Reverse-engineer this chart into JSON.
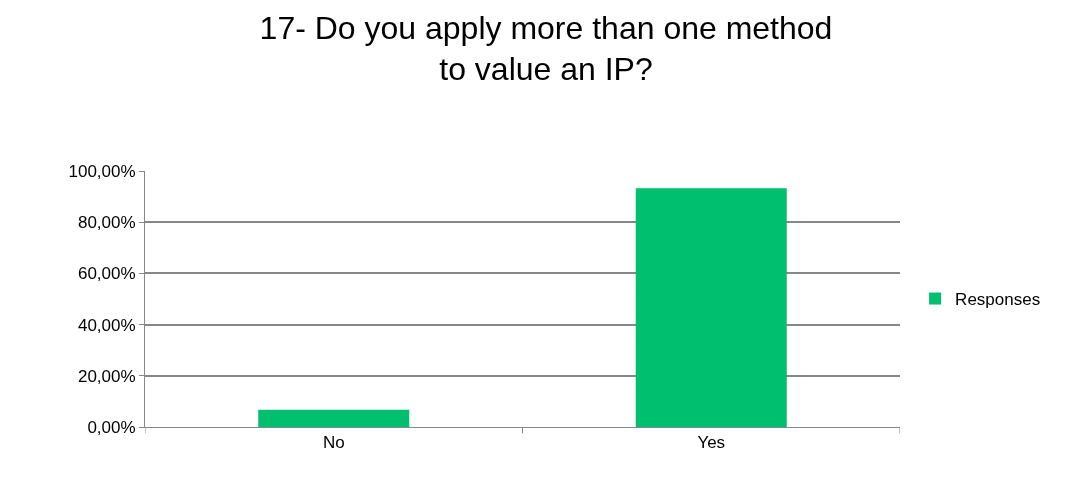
{
  "chart_data": {
    "type": "bar",
    "title": "17- Do you apply more than one method to value an IP?",
    "categories": [
      "No",
      "Yes"
    ],
    "series": [
      {
        "name": "Responses",
        "color": "#00bf6f",
        "values": [
          6.7,
          93.3
        ]
      }
    ],
    "ylim": [
      0,
      100
    ],
    "yticks": [
      {
        "value": 0,
        "label": "0,00%"
      },
      {
        "value": 20,
        "label": "20,00%"
      },
      {
        "value": 40,
        "label": "40,00%"
      },
      {
        "value": 60,
        "label": "60,00%"
      },
      {
        "value": 80,
        "label": "80,00%"
      },
      {
        "value": 100,
        "label": "100,00%"
      }
    ],
    "grid": "y",
    "legend": "right"
  }
}
